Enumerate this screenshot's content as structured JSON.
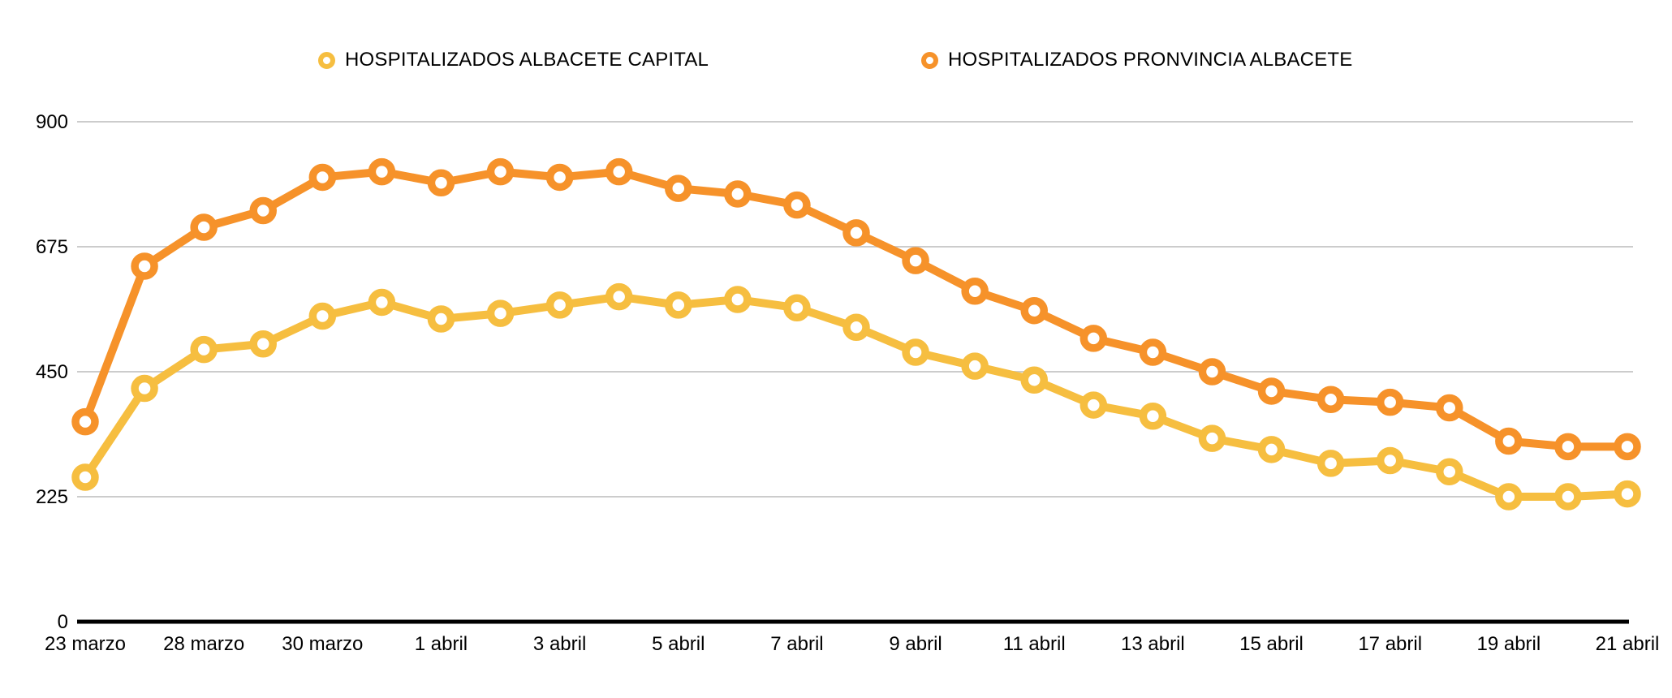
{
  "page": {
    "background": "#FFFFFF",
    "text_color": "#000000"
  },
  "chart_data": {
    "type": "line",
    "title": "",
    "xlabel": "",
    "ylabel": "",
    "ylim": [
      0,
      900
    ],
    "y_ticks": [
      "900",
      "675",
      "450",
      "225",
      "0"
    ],
    "grid": "horizontal-only",
    "grid_color": "#CCCCCC",
    "axis_color": "#000000",
    "legend_position": "top",
    "marker_style": "open-circle",
    "x_tick_labels": [
      "23 marzo",
      "28 marzo",
      "30 marzo",
      "1 abril",
      "3 abril",
      "5 abril",
      "7 abril",
      "9 abril",
      "11 abril",
      "13 abril",
      "15 abril",
      "17 abril",
      "19 abril",
      "21 abril"
    ],
    "categories": [
      "23 marzo",
      "",
      "28 marzo",
      "",
      "30 marzo",
      "",
      "1 abril",
      "",
      "3 abril",
      "",
      "5 abril",
      "",
      "7 abril",
      "",
      "9 abril",
      "",
      "11 abril",
      "",
      "13 abril",
      "",
      "15 abril",
      "",
      "17 abril",
      "",
      "19 abril",
      "",
      "21 abril"
    ],
    "series": [
      {
        "name": "HOSPITALIZADOS ALBACETE CAPITAL",
        "color": "#F6BE40",
        "values": [
          260,
          420,
          490,
          500,
          550,
          575,
          545,
          555,
          570,
          585,
          570,
          580,
          565,
          530,
          485,
          460,
          435,
          390,
          370,
          330,
          310,
          285,
          290,
          270,
          225,
          225,
          230
        ]
      },
      {
        "name": "HOSPITALIZADOS PRONVINCIA ALBACETE",
        "color": "#F6922A",
        "values": [
          360,
          640,
          710,
          740,
          800,
          810,
          790,
          810,
          800,
          810,
          780,
          770,
          750,
          700,
          650,
          595,
          560,
          510,
          485,
          450,
          415,
          400,
          395,
          385,
          325,
          315,
          315
        ]
      }
    ]
  }
}
